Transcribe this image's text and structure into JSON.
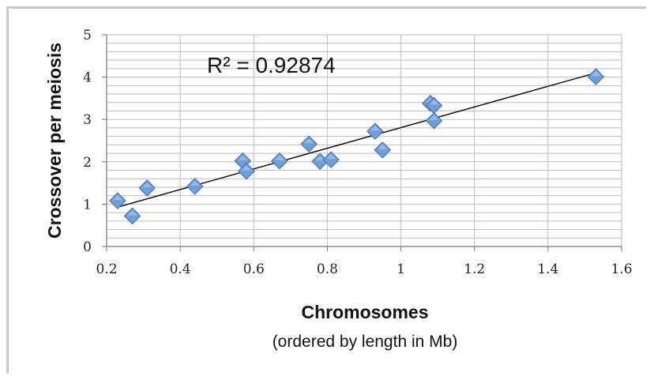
{
  "chart_data": {
    "type": "scatter",
    "xlabel": "Chromosomes",
    "xlabel_sub": "(ordered by length in Mb)",
    "ylabel": "Crossover per meiosis",
    "annotation": "R² = 0.92874",
    "xlim": [
      0.2,
      1.6
    ],
    "ylim": [
      0,
      5
    ],
    "x_ticks": [
      "0.2",
      "0.4",
      "0.6",
      "0.8",
      "1",
      "1.2",
      "1.4",
      "1.6"
    ],
    "y_ticks": [
      "0",
      "1",
      "2",
      "3",
      "4",
      "5"
    ],
    "grid": true,
    "marker": "diamond",
    "marker_color": "#6f9fd8",
    "trendline": {
      "type": "linear",
      "x": [
        0.23,
        1.53
      ],
      "y": [
        0.93,
        4.1
      ]
    },
    "points": [
      {
        "x": 0.23,
        "y": 1.08
      },
      {
        "x": 0.27,
        "y": 0.72
      },
      {
        "x": 0.31,
        "y": 1.38
      },
      {
        "x": 0.44,
        "y": 1.42
      },
      {
        "x": 0.57,
        "y": 2.02
      },
      {
        "x": 0.58,
        "y": 1.78
      },
      {
        "x": 0.67,
        "y": 2.02
      },
      {
        "x": 0.75,
        "y": 2.42
      },
      {
        "x": 0.78,
        "y": 2.01
      },
      {
        "x": 0.81,
        "y": 2.05
      },
      {
        "x": 0.93,
        "y": 2.72
      },
      {
        "x": 0.95,
        "y": 2.28
      },
      {
        "x": 1.08,
        "y": 3.38
      },
      {
        "x": 1.09,
        "y": 3.33
      },
      {
        "x": 1.09,
        "y": 2.97
      },
      {
        "x": 1.53,
        "y": 4.01
      }
    ]
  }
}
